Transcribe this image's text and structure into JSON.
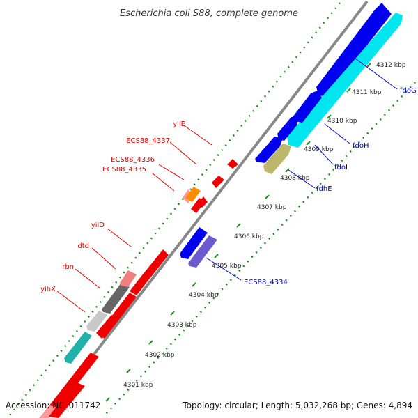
{
  "title": "Escherichia coli S88, complete genome",
  "footer": {
    "accession": "Accession: NC_011742",
    "summary": "Topology: circular; Length: 5,032,268 bp; Genes: 4,894"
  },
  "colors": {
    "forward_label": "#0000cc",
    "reverse_label": "#e00000",
    "backbone": "#888888",
    "tick": "#228b22"
  },
  "ticks": [
    "4301 kbp",
    "4302 kbp",
    "4303 kbp",
    "4304 kbp",
    "4305 kbp",
    "4306 kbp",
    "4307 kbp",
    "4308 kbp",
    "4309 kbp",
    "4310 kbp",
    "4311 kbp",
    "4312 kbp"
  ],
  "forward_genes": [
    {
      "label": "fdoG",
      "color": "#0000ee"
    },
    {
      "label": "",
      "color": "#00e5ee"
    },
    {
      "label": "fdoH",
      "color": "#0000ee"
    },
    {
      "label": "fdoI",
      "color": "#0000ee"
    },
    {
      "label": "fdhE",
      "color": "#0000ee"
    },
    {
      "label": "ECS88_4334",
      "color": "#0000ee"
    }
  ],
  "reverse_genes": [
    {
      "label": "yiiE",
      "color": "#ee0000"
    },
    {
      "label": "ECS88_4337",
      "color": "#ee0000"
    },
    {
      "label": "ECS88_4336",
      "color": "#ee0000"
    },
    {
      "label": "ECS88_4335",
      "color": "#ee0000"
    },
    {
      "label": "yiiD",
      "color": "#ee0000"
    },
    {
      "label": "dtd",
      "color": "#ee0000"
    },
    {
      "label": "rbn",
      "color": "#ee0000"
    },
    {
      "label": "yihX",
      "color": "#ee0000"
    }
  ]
}
